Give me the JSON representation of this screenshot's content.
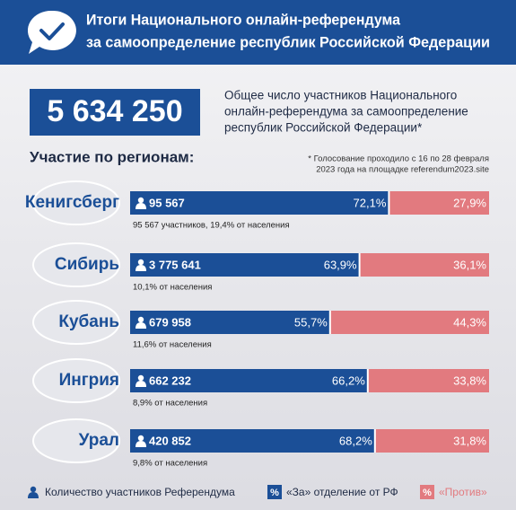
{
  "header": {
    "title": [
      "Итоги Национального онлайн-референдума",
      "за самоопределение республик Российской Федерации"
    ]
  },
  "total": {
    "value": "5 634 250",
    "description": [
      "Общее число участников Национального",
      "онлайн-референдума за самоопределение",
      "республик Российской Федерации*"
    ]
  },
  "section_title": "Участие по регионам:",
  "note": [
    "* Голосование проходило с 16 по 28 февраля",
    "2023 года на площадке referendum2023.site"
  ],
  "chart_data": {
    "type": "bar",
    "orientation": "horizontal",
    "stacked": true,
    "categories": [
      "Кенигсберг",
      "Сибирь",
      "Кубань",
      "Ингрия",
      "Урал"
    ],
    "participants": [
      "95 567",
      "3 775 641",
      "679 958",
      "662 232",
      "420 852"
    ],
    "population_notes": [
      "95 567 участников, 19,4% от населения",
      "10,1% от населения",
      "11,6% от населения",
      "8,9% от населения",
      "9,8% от населения"
    ],
    "xlim": [
      0,
      100
    ],
    "series": [
      {
        "name": "«За» отделение от РФ",
        "color": "#1b4f97",
        "values": [
          72.1,
          63.9,
          55.7,
          66.2,
          68.2
        ],
        "value_labels": [
          "72,1%",
          "63,9%",
          "55,7%",
          "66,2%",
          "68,2%"
        ]
      },
      {
        "name": "«Против»",
        "color": "#e27a7f",
        "values": [
          27.9,
          36.1,
          44.3,
          33.8,
          31.8
        ],
        "value_labels": [
          "27,9%",
          "36,1%",
          "44,3%",
          "33,8%",
          "31,8%"
        ]
      }
    ],
    "legend_participants": "Количество участников Референдума",
    "legend_symbol": "%"
  }
}
